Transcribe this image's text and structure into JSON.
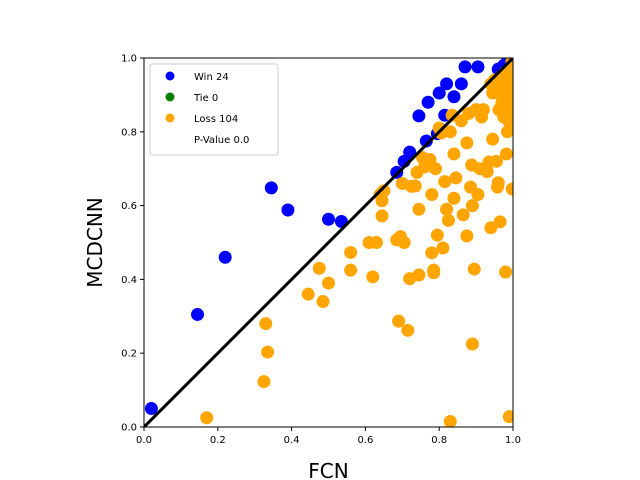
{
  "chart_data": {
    "type": "scatter",
    "xlabel": "FCN",
    "ylabel": "MCDCNN",
    "xlim": [
      0,
      1
    ],
    "ylim": [
      0,
      1
    ],
    "xticks": [
      "0.0",
      "0.2",
      "0.4",
      "0.6",
      "0.8",
      "1.0"
    ],
    "yticks": [
      "0.0",
      "0.2",
      "0.4",
      "0.6",
      "0.8",
      "1.0"
    ],
    "grid": false,
    "diagonal_line": true,
    "legend": {
      "placement": "top-left",
      "entries": [
        {
          "label": "Win 24",
          "color": "#0000ff"
        },
        {
          "label": "Tie 0",
          "color": "#008000"
        },
        {
          "label": "Loss 104",
          "color": "#ffa500"
        },
        {
          "label": "P-Value 0.0",
          "color": "none"
        }
      ]
    },
    "series": [
      {
        "name": "Win 24",
        "color": "#0000ff",
        "points": [
          [
            0.02,
            0.05
          ],
          [
            0.145,
            0.305
          ],
          [
            0.22,
            0.46
          ],
          [
            0.345,
            0.648
          ],
          [
            0.39,
            0.588
          ],
          [
            0.5,
            0.563
          ],
          [
            0.535,
            0.557
          ],
          [
            0.685,
            0.69
          ],
          [
            0.705,
            0.72
          ],
          [
            0.72,
            0.745
          ],
          [
            0.745,
            0.843
          ],
          [
            0.765,
            0.775
          ],
          [
            0.77,
            0.88
          ],
          [
            0.795,
            0.795
          ],
          [
            0.8,
            0.905
          ],
          [
            0.815,
            0.845
          ],
          [
            0.82,
            0.93
          ],
          [
            0.84,
            0.895
          ],
          [
            0.86,
            0.93
          ],
          [
            0.87,
            0.976
          ],
          [
            0.905,
            0.976
          ],
          [
            0.96,
            0.97
          ],
          [
            0.975,
            0.98
          ],
          [
            0.985,
            0.99
          ]
        ]
      },
      {
        "name": "Tie 0",
        "color": "#008000",
        "points": []
      },
      {
        "name": "Loss 104",
        "color": "#ffa500",
        "points": [
          [
            0.17,
            0.025
          ],
          [
            0.325,
            0.123
          ],
          [
            0.33,
            0.28
          ],
          [
            0.335,
            0.203
          ],
          [
            0.445,
            0.36
          ],
          [
            0.475,
            0.43
          ],
          [
            0.485,
            0.34
          ],
          [
            0.5,
            0.39
          ],
          [
            0.56,
            0.473
          ],
          [
            0.56,
            0.425
          ],
          [
            0.61,
            0.5
          ],
          [
            0.62,
            0.407
          ],
          [
            0.63,
            0.5
          ],
          [
            0.64,
            0.63
          ],
          [
            0.645,
            0.613
          ],
          [
            0.645,
            0.572
          ],
          [
            0.65,
            0.64
          ],
          [
            0.685,
            0.507
          ],
          [
            0.69,
            0.287
          ],
          [
            0.695,
            0.516
          ],
          [
            0.7,
            0.66
          ],
          [
            0.705,
            0.5
          ],
          [
            0.715,
            0.262
          ],
          [
            0.72,
            0.402
          ],
          [
            0.725,
            0.652
          ],
          [
            0.735,
            0.653
          ],
          [
            0.74,
            0.69
          ],
          [
            0.745,
            0.412
          ],
          [
            0.745,
            0.59
          ],
          [
            0.755,
            0.73
          ],
          [
            0.76,
            0.705
          ],
          [
            0.775,
            0.725
          ],
          [
            0.78,
            0.472
          ],
          [
            0.78,
            0.63
          ],
          [
            0.785,
            0.418
          ],
          [
            0.785,
            0.425
          ],
          [
            0.79,
            0.7
          ],
          [
            0.795,
            0.52
          ],
          [
            0.8,
            0.81
          ],
          [
            0.805,
            0.797
          ],
          [
            0.81,
            0.485
          ],
          [
            0.815,
            0.665
          ],
          [
            0.82,
            0.59
          ],
          [
            0.825,
            0.56
          ],
          [
            0.83,
            0.015
          ],
          [
            0.83,
            0.8
          ],
          [
            0.835,
            0.845
          ],
          [
            0.84,
            0.62
          ],
          [
            0.84,
            0.74
          ],
          [
            0.845,
            0.675
          ],
          [
            0.86,
            0.83
          ],
          [
            0.865,
            0.575
          ],
          [
            0.875,
            0.77
          ],
          [
            0.875,
            0.518
          ],
          [
            0.88,
            0.85
          ],
          [
            0.885,
            0.65
          ],
          [
            0.888,
            0.71
          ],
          [
            0.89,
            0.6
          ],
          [
            0.89,
            0.225
          ],
          [
            0.895,
            0.428
          ],
          [
            0.9,
            0.86
          ],
          [
            0.905,
            0.63
          ],
          [
            0.91,
            0.7
          ],
          [
            0.915,
            0.84
          ],
          [
            0.92,
            0.86
          ],
          [
            0.93,
            0.692
          ],
          [
            0.935,
            0.718
          ],
          [
            0.94,
            0.54
          ],
          [
            0.94,
            0.93
          ],
          [
            0.945,
            0.78
          ],
          [
            0.945,
            0.905
          ],
          [
            0.95,
            0.94
          ],
          [
            0.955,
            0.92
          ],
          [
            0.955,
            0.72
          ],
          [
            0.958,
            0.65
          ],
          [
            0.96,
            0.662
          ],
          [
            0.962,
            0.86
          ],
          [
            0.965,
            0.91
          ],
          [
            0.965,
            0.556
          ],
          [
            0.968,
            0.95
          ],
          [
            0.97,
            0.88
          ],
          [
            0.972,
            0.9
          ],
          [
            0.975,
            0.84
          ],
          [
            0.978,
            0.96
          ],
          [
            0.98,
            0.42
          ],
          [
            0.98,
            0.93
          ],
          [
            0.982,
            0.74
          ],
          [
            0.984,
            0.87
          ],
          [
            0.985,
            0.8
          ],
          [
            0.986,
            0.94
          ],
          [
            0.988,
            0.83
          ],
          [
            0.99,
            0.028
          ],
          [
            0.99,
            0.88
          ],
          [
            0.991,
            0.9
          ],
          [
            0.992,
            0.92
          ],
          [
            0.993,
            0.85
          ],
          [
            0.994,
            0.97
          ],
          [
            0.995,
            0.81
          ],
          [
            0.996,
            0.95
          ],
          [
            0.997,
            0.99
          ],
          [
            0.998,
            0.645
          ],
          [
            0.998,
            0.895
          ],
          [
            0.999,
            0.86
          ],
          [
            0.999,
            0.93
          ]
        ]
      }
    ]
  }
}
